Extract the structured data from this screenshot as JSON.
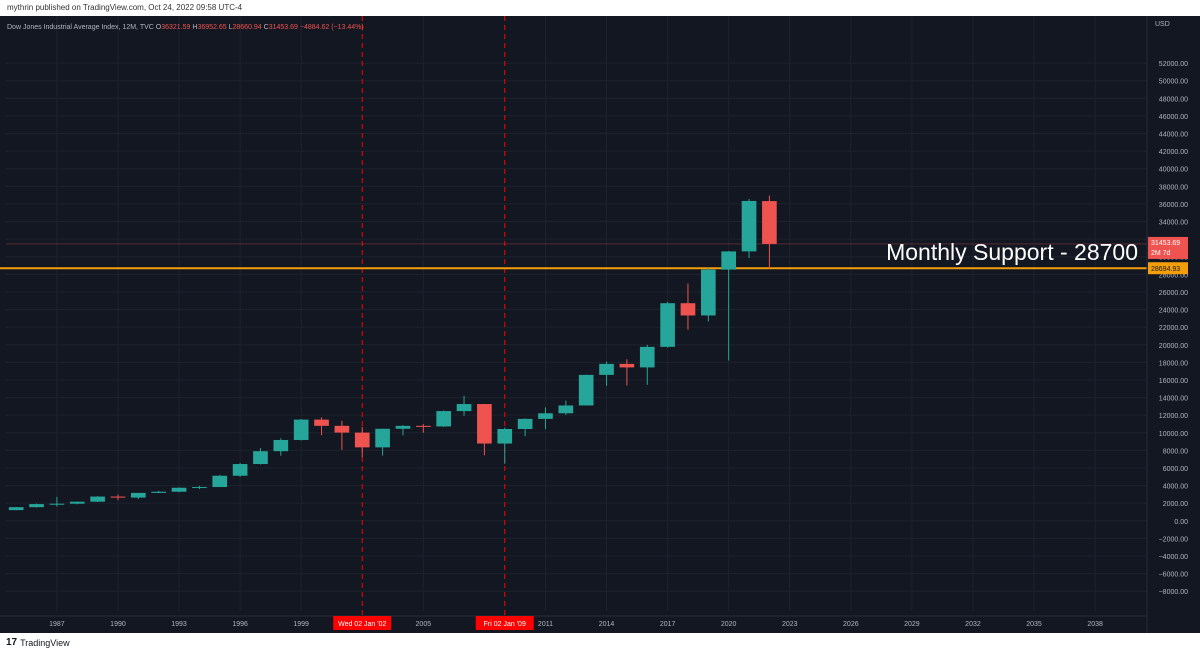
{
  "header": {
    "published_by": "mythrin published on TradingView.com, Oct 24, 2022 09:58 UTC-4"
  },
  "footer": {
    "logo_text": "TradingView",
    "logo_mark": "17"
  },
  "colors": {
    "background": "#131722",
    "up": "#26a69a",
    "down": "#ef5350",
    "support": "#f59e0b",
    "marker": "#ff0000"
  },
  "chart_data": {
    "type": "candlestick",
    "title": "Dow Jones Industrial Average Index, 12M, TVC",
    "ohlc_readout": {
      "o_label": "O",
      "o": "36321.59",
      "h_label": "H",
      "h": "36952.65",
      "l_label": "L",
      "l": "28660.94",
      "c_label": "C",
      "c": "31453.69",
      "change": "−4884.62 (−13.44%)"
    },
    "currency": "USD",
    "ylim": [
      -9000,
      54000
    ],
    "y_ticks": [
      52000,
      50000,
      48000,
      46000,
      44000,
      42000,
      40000,
      38000,
      36000,
      34000,
      32000,
      30000,
      28000,
      26000,
      24000,
      22000,
      20000,
      18000,
      16000,
      14000,
      12000,
      10000,
      8000,
      6000,
      4000,
      2000,
      0,
      -2000,
      -4000,
      -6000,
      -8000
    ],
    "y_tick_labels": [
      "52000.00",
      "50000.00",
      "48000.00",
      "46000.00",
      "44000.00",
      "42000.00",
      "40000.00",
      "38000.00",
      "36000.00",
      "34000.00",
      "32000.00",
      "30000.00",
      "28000.00",
      "26000.00",
      "24000.00",
      "22000.00",
      "20000.00",
      "18000.00",
      "16000.00",
      "14000.00",
      "12000.00",
      "10000.00",
      "8000.00",
      "6000.00",
      "4000.00",
      "2000.00",
      "0.00",
      "−2000.00",
      "−4000.00",
      "−6000.00",
      "−8000.00"
    ],
    "x_range": [
      1984.5,
      2040.5
    ],
    "x_ticks": [
      1987,
      1990,
      1993,
      1996,
      1999,
      2005,
      2011,
      2014,
      2017,
      2020,
      2023,
      2026,
      2029,
      2032,
      2035,
      2038
    ],
    "x_tick_labels": [
      "1987",
      "1990",
      "1993",
      "1996",
      "1999",
      "2005",
      "2011",
      "2014",
      "2017",
      "2020",
      "2023",
      "2026",
      "2029",
      "2032",
      "2035",
      "2038"
    ],
    "candles": [
      {
        "year": 1985,
        "o": 1212,
        "h": 1553,
        "l": 1185,
        "c": 1547
      },
      {
        "year": 1986,
        "o": 1547,
        "h": 1955,
        "l": 1502,
        "c": 1896
      },
      {
        "year": 1987,
        "o": 1896,
        "h": 2722,
        "l": 1616,
        "c": 1939
      },
      {
        "year": 1988,
        "o": 1939,
        "h": 2183,
        "l": 1879,
        "c": 2169
      },
      {
        "year": 1989,
        "o": 2169,
        "h": 2791,
        "l": 2144,
        "c": 2753
      },
      {
        "year": 1990,
        "o": 2753,
        "h": 2999,
        "l": 2344,
        "c": 2634
      },
      {
        "year": 1991,
        "o": 2634,
        "h": 3168,
        "l": 2470,
        "c": 3169
      },
      {
        "year": 1992,
        "o": 3169,
        "h": 3413,
        "l": 3136,
        "c": 3301
      },
      {
        "year": 1993,
        "o": 3301,
        "h": 3794,
        "l": 3241,
        "c": 3754
      },
      {
        "year": 1994,
        "o": 3754,
        "h": 3978,
        "l": 3593,
        "c": 3834
      },
      {
        "year": 1995,
        "o": 3834,
        "h": 5216,
        "l": 3832,
        "c": 5117
      },
      {
        "year": 1996,
        "o": 5117,
        "h": 6560,
        "l": 5000,
        "c": 6448
      },
      {
        "year": 1997,
        "o": 6448,
        "h": 8259,
        "l": 6391,
        "c": 7908
      },
      {
        "year": 1998,
        "o": 7908,
        "h": 9374,
        "l": 7400,
        "c": 9181
      },
      {
        "year": 1999,
        "o": 9181,
        "h": 11568,
        "l": 9120,
        "c": 11497
      },
      {
        "year": 2000,
        "o": 11497,
        "h": 11750,
        "l": 9731,
        "c": 10787
      },
      {
        "year": 2001,
        "o": 10787,
        "h": 11350,
        "l": 8062,
        "c": 10021
      },
      {
        "year": 2002,
        "o": 10021,
        "h": 10673,
        "l": 7197,
        "c": 8341
      },
      {
        "year": 2003,
        "o": 8341,
        "h": 10462,
        "l": 7416,
        "c": 10453
      },
      {
        "year": 2004,
        "o": 10453,
        "h": 10868,
        "l": 9708,
        "c": 10783
      },
      {
        "year": 2005,
        "o": 10783,
        "h": 10984,
        "l": 10000,
        "c": 10717
      },
      {
        "year": 2006,
        "o": 10717,
        "h": 12529,
        "l": 10661,
        "c": 12463
      },
      {
        "year": 2007,
        "o": 12463,
        "h": 14198,
        "l": 11939,
        "c": 13264
      },
      {
        "year": 2008,
        "o": 13264,
        "h": 13279,
        "l": 7449,
        "c": 8776
      },
      {
        "year": 2009,
        "o": 8776,
        "h": 10580,
        "l": 6470,
        "c": 10428
      },
      {
        "year": 2010,
        "o": 10428,
        "h": 11625,
        "l": 9614,
        "c": 11577
      },
      {
        "year": 2011,
        "o": 11577,
        "h": 12876,
        "l": 10404,
        "c": 12217
      },
      {
        "year": 2012,
        "o": 12217,
        "h": 13661,
        "l": 12035,
        "c": 13104
      },
      {
        "year": 2013,
        "o": 13104,
        "h": 16588,
        "l": 13104,
        "c": 16576
      },
      {
        "year": 2014,
        "o": 16576,
        "h": 18103,
        "l": 15340,
        "c": 17823
      },
      {
        "year": 2015,
        "o": 17823,
        "h": 18351,
        "l": 15370,
        "c": 17425
      },
      {
        "year": 2016,
        "o": 17425,
        "h": 19987,
        "l": 15450,
        "c": 19762
      },
      {
        "year": 2017,
        "o": 19762,
        "h": 24876,
        "l": 19677,
        "c": 24719
      },
      {
        "year": 2018,
        "o": 24719,
        "h": 26951,
        "l": 21712,
        "c": 23327
      },
      {
        "year": 2019,
        "o": 23327,
        "h": 28701,
        "l": 22638,
        "c": 28538
      },
      {
        "year": 2020,
        "o": 28538,
        "h": 30637,
        "l": 18213,
        "c": 30606
      },
      {
        "year": 2021,
        "o": 30606,
        "h": 36565,
        "l": 29856,
        "c": 36338
      },
      {
        "year": 2022,
        "o": 36321.59,
        "h": 36952.65,
        "l": 28660.94,
        "c": 31453.69
      }
    ],
    "vlines": [
      {
        "x": 2002.0,
        "label": "Wed 02 Jan '02"
      },
      {
        "x": 2009.0,
        "label": "Fri 02 Jan '09"
      }
    ],
    "support_level": 28694.93,
    "support_label": "28694.93",
    "support_annotation": "Monthly Support - 28700",
    "price_line": 31453.69,
    "price_label": "31453.69",
    "price_countdown": "2M 7d"
  }
}
